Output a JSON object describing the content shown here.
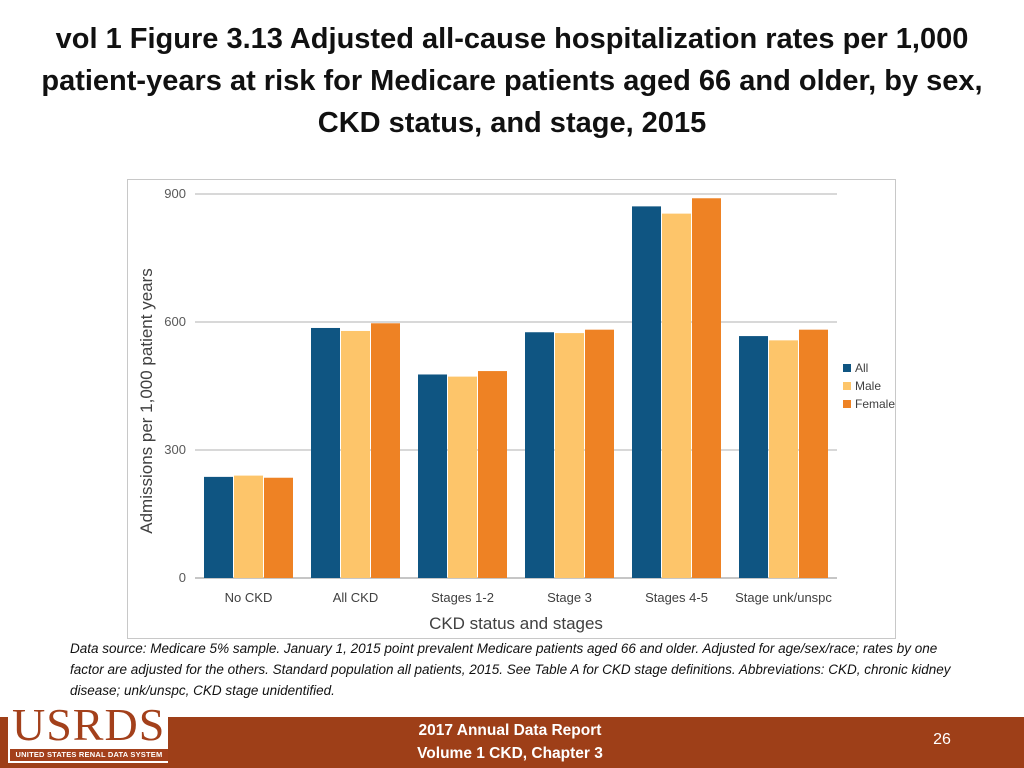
{
  "slide": {
    "title": "vol 1 Figure 3.13 Adjusted all-cause hospitalization rates per 1,000 patient-years at risk for Medicare patients aged 66 and older, by sex, CKD status, and stage, 2015",
    "source_note": "Data source: Medicare 5% sample. January 1, 2015 point prevalent Medicare patients aged 66 and older. Adjusted for age/sex/race; rates by one factor are adjusted for the others. Standard population all patients, 2015. See Table A for CKD stage definitions. Abbreviations: CKD, chronic kidney disease; unk/unspc, CKD stage unidentified."
  },
  "footer": {
    "logo_text": "USRDS",
    "logo_subtext": "UNITED STATES RENAL DATA SYSTEM",
    "report_line1": "2017 Annual Data Report",
    "report_line2": "Volume 1 CKD, Chapter 3",
    "page_number": "26",
    "bar_color": "#9e3f18"
  },
  "chart_data": {
    "type": "bar",
    "title": "",
    "xlabel": "CKD status and stages",
    "ylabel": "Admissions per 1,000 patient years",
    "categories": [
      "No CKD",
      "All CKD",
      "Stages 1-2",
      "Stage 3",
      "Stages 4-5",
      "Stage unk/unspc"
    ],
    "series": [
      {
        "name": "All",
        "color": "#0f5582",
        "values": [
          237,
          586,
          477,
          576,
          871,
          567
        ]
      },
      {
        "name": "Male",
        "color": "#fdc56a",
        "values": [
          240,
          579,
          472,
          574,
          854,
          557
        ]
      },
      {
        "name": "Female",
        "color": "#ee8224",
        "values": [
          235,
          597,
          485,
          582,
          890,
          582
        ]
      }
    ],
    "ylim": [
      0,
      900
    ],
    "yticks": [
      0,
      300,
      600,
      900
    ],
    "grid": true,
    "legend_position": "right"
  }
}
